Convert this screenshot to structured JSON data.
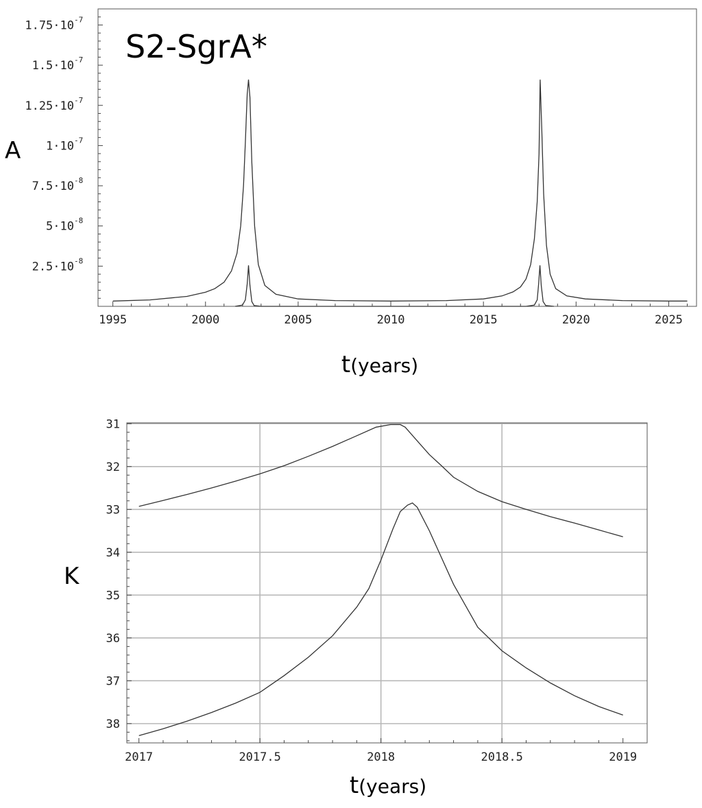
{
  "chart_data": [
    {
      "type": "line",
      "title": "S2-SgrA*",
      "xlabel": "t",
      "xlabel_unit": "(years)",
      "ylabel": "A",
      "xlim": [
        1994.2,
        2026.5
      ],
      "ylim": [
        0,
        1.85e-07
      ],
      "grid": false,
      "x_ticks": [
        1995,
        2000,
        2005,
        2010,
        2015,
        2020,
        2025
      ],
      "x_tick_labels": [
        "1995",
        "2000",
        "2005",
        "2010",
        "2015",
        "2020",
        "2025"
      ],
      "y_ticks": [
        {
          "value": 2.5e-08,
          "mantissa": "2.5",
          "exponent": "-8"
        },
        {
          "value": 5e-08,
          "mantissa": "5",
          "exponent": "-8"
        },
        {
          "value": 7.5e-08,
          "mantissa": "7.5",
          "exponent": "-8"
        },
        {
          "value": 1e-07,
          "mantissa": "1",
          "exponent": "-7"
        },
        {
          "value": 1.25e-07,
          "mantissa": "1.25",
          "exponent": "-7"
        },
        {
          "value": 1.5e-07,
          "mantissa": "1.5",
          "exponent": "-7"
        },
        {
          "value": 1.75e-07,
          "mantissa": "1.75",
          "exponent": "-7"
        }
      ],
      "series": [
        {
          "x": [
            1995.0,
            1997.0,
            1999.0,
            2000.0,
            2000.5,
            2001.0,
            2001.4,
            2001.7,
            2001.9,
            2002.05,
            2002.15,
            2002.25,
            2002.32,
            2002.4,
            2002.5,
            2002.65,
            2002.85,
            2003.2,
            2003.8,
            2005.0,
            2007.0,
            2010.0,
            2013.0,
            2015.0,
            2016.0,
            2016.6,
            2017.0,
            2017.3,
            2017.55,
            2017.75,
            2017.9,
            2018.0,
            2018.06,
            2018.15,
            2018.25,
            2018.4,
            2018.6,
            2018.9,
            2019.5,
            2020.5,
            2022.5,
            2025.0,
            2026.0
          ],
          "y": [
            3.3e-09,
            4e-09,
            6.2e-09,
            8.8e-09,
            1.1e-08,
            1.5e-08,
            2.2e-08,
            3.3e-08,
            5e-08,
            7.5e-08,
            1.02e-07,
            1.32e-07,
            1.41e-07,
            1.3e-07,
            9e-08,
            5e-08,
            2.6e-08,
            1.3e-08,
            7.5e-09,
            4.6e-09,
            3.6e-09,
            3.3e-09,
            3.6e-09,
            4.6e-09,
            6.5e-09,
            9e-09,
            1.2e-08,
            1.7e-08,
            2.6e-08,
            4.2e-08,
            6.5e-08,
            9.5e-08,
            1.41e-07,
            1.1e-07,
            7e-08,
            3.8e-08,
            2e-08,
            1.1e-08,
            6.5e-09,
            4.6e-09,
            3.6e-09,
            3.3e-09,
            3.3e-09
          ]
        },
        {
          "x": [
            2001.6,
            2002.0,
            2002.15,
            2002.25,
            2002.32,
            2002.4,
            2002.5,
            2002.62,
            2003.0,
            2017.3,
            2017.75,
            2017.9,
            2017.98,
            2018.05,
            2018.12,
            2018.22,
            2018.36,
            2018.8
          ],
          "y": [
            0,
            8e-10,
            4e-09,
            1.4e-08,
            2.55e-08,
            1.3e-08,
            3e-09,
            5e-10,
            0,
            0,
            8e-10,
            4e-09,
            1.4e-08,
            2.55e-08,
            1.3e-08,
            3e-09,
            5e-10,
            0
          ]
        }
      ]
    },
    {
      "type": "line",
      "title": "",
      "xlabel": "t",
      "xlabel_unit": "(years)",
      "ylabel": "K",
      "xlim": [
        2016.95,
        2019.1
      ],
      "ylim": [
        38.45,
        30.98
      ],
      "y_inverted": true,
      "grid": true,
      "x_ticks": [
        2017,
        2017.5,
        2018,
        2018.5,
        2019
      ],
      "x_tick_labels": [
        "2017",
        "2017.5",
        "2018",
        "2018.5",
        "2019"
      ],
      "y_ticks": [
        31,
        32,
        33,
        34,
        35,
        36,
        37,
        38
      ],
      "y_tick_labels": [
        "31",
        "32",
        "33",
        "34",
        "35",
        "36",
        "37",
        "38"
      ],
      "series": [
        {
          "x": [
            2017.0,
            2017.1,
            2017.2,
            2017.3,
            2017.4,
            2017.5,
            2017.6,
            2017.7,
            2017.8,
            2017.9,
            2017.98,
            2018.04,
            2018.08,
            2018.1,
            2018.15,
            2018.2,
            2018.25,
            2018.3,
            2018.4,
            2018.5,
            2018.6,
            2018.7,
            2018.8,
            2018.9,
            2019.0
          ],
          "y": [
            32.93,
            32.79,
            32.65,
            32.5,
            32.34,
            32.17,
            31.98,
            31.76,
            31.53,
            31.28,
            31.08,
            31.02,
            31.02,
            31.08,
            31.4,
            31.72,
            31.98,
            32.25,
            32.58,
            32.82,
            33.0,
            33.17,
            33.32,
            33.48,
            33.64
          ]
        },
        {
          "x": [
            2017.0,
            2017.1,
            2017.2,
            2017.3,
            2017.4,
            2017.5,
            2017.6,
            2017.7,
            2017.8,
            2017.9,
            2017.95,
            2018.0,
            2018.05,
            2018.08,
            2018.11,
            2018.13,
            2018.15,
            2018.2,
            2018.3,
            2018.4,
            2018.5,
            2018.6,
            2018.7,
            2018.8,
            2018.9,
            2019.0
          ],
          "y": [
            38.28,
            38.12,
            37.94,
            37.74,
            37.52,
            37.27,
            36.88,
            36.45,
            35.95,
            35.28,
            34.85,
            34.18,
            33.45,
            33.05,
            32.9,
            32.85,
            32.95,
            33.5,
            34.75,
            35.75,
            36.3,
            36.7,
            37.05,
            37.35,
            37.6,
            37.8
          ]
        }
      ]
    }
  ]
}
